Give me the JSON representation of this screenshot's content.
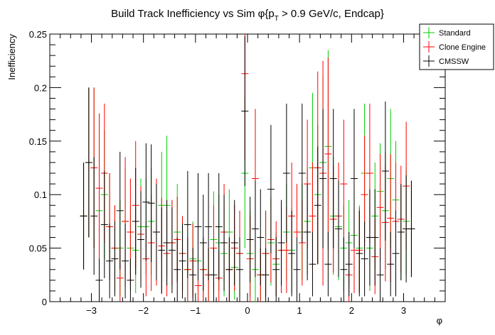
{
  "chart_data": {
    "type": "scatter",
    "title": "Build Track Inefficiency vs Sim φ{p_T > 0.9 GeV/c, Endcap}",
    "title_parts": {
      "pre": "Build Track Inefficiency vs Sim ",
      "phi": "φ",
      "brace": "{p",
      "sub": "T",
      "post": " > 0.9 GeV/c, Endcap}"
    },
    "xlabel": "φ",
    "ylabel": "Inefficiency",
    "xlim": [
      -3.8,
      3.8
    ],
    "ylim": [
      0,
      0.25
    ],
    "xticks": [
      -3,
      -2,
      -1,
      0,
      1,
      2,
      3
    ],
    "xtick_labels": [
      "−3",
      "−2",
      "−1",
      "0",
      "1",
      "2",
      "3"
    ],
    "yticks": [
      0,
      0.05,
      0.1,
      0.15,
      0.2,
      0.25
    ],
    "ytick_labels": [
      "0",
      "0.05",
      "0.1",
      "0.15",
      "0.2",
      "0.25"
    ],
    "legend_position": "top-right",
    "x": [
      -3.15,
      -3.05,
      -2.95,
      -2.85,
      -2.75,
      -2.65,
      -2.55,
      -2.45,
      -2.35,
      -2.25,
      -2.15,
      -2.05,
      -1.95,
      -1.85,
      -1.75,
      -1.65,
      -1.55,
      -1.45,
      -1.35,
      -1.25,
      -1.15,
      -1.05,
      -0.95,
      -0.85,
      -0.75,
      -0.65,
      -0.55,
      -0.45,
      -0.35,
      -0.25,
      -0.15,
      -0.05,
      0.05,
      0.15,
      0.25,
      0.35,
      0.45,
      0.55,
      0.65,
      0.75,
      0.85,
      0.95,
      1.05,
      1.15,
      1.25,
      1.35,
      1.45,
      1.55,
      1.65,
      1.75,
      1.85,
      1.95,
      2.05,
      2.15,
      2.25,
      2.35,
      2.45,
      2.55,
      2.65,
      2.75,
      2.85,
      2.95,
      3.05,
      3.15
    ],
    "series": [
      {
        "name": "Standard",
        "color": "#00cc00",
        "linewidth": 1,
        "values": [
          0.08,
          0.13,
          0.125,
          0.085,
          0.1,
          0.07,
          0.05,
          0.05,
          0.075,
          0.05,
          0.048,
          0.07,
          0.07,
          0.075,
          0.065,
          0.09,
          0.09,
          0.055,
          0.065,
          0.045,
          0.03,
          0.04,
          0.038,
          0.03,
          0.025,
          0.058,
          0.055,
          0.045,
          0.065,
          0.032,
          0.045,
          0.12,
          0.045,
          0.03,
          0.025,
          0.045,
          0.055,
          0.035,
          0.048,
          0.065,
          0.048,
          0.065,
          0.065,
          0.075,
          0.125,
          0.1,
          0.13,
          0.145,
          0.08,
          0.07,
          0.05,
          0.055,
          0.062,
          0.05,
          0.12,
          0.05,
          0.08,
          0.103,
          0.085,
          0.115,
          0.095,
          0.065,
          0.075,
          0.068
        ],
        "err": [
          0.05,
          0.07,
          0.075,
          0.065,
          0.06,
          0.05,
          0.04,
          0.045,
          0.05,
          0.04,
          0.04,
          0.045,
          0.045,
          0.05,
          0.04,
          0.05,
          0.065,
          0.04,
          0.045,
          0.035,
          0.03,
          0.035,
          0.03,
          0.03,
          0.025,
          0.045,
          0.045,
          0.04,
          0.04,
          0.03,
          0.04,
          0.07,
          0.04,
          0.03,
          0.025,
          0.04,
          0.04,
          0.03,
          0.04,
          0.045,
          0.04,
          0.045,
          0.045,
          0.05,
          0.07,
          0.065,
          0.08,
          0.09,
          0.055,
          0.05,
          0.04,
          0.04,
          0.045,
          0.04,
          0.065,
          0.04,
          0.05,
          0.045,
          0.055,
          0.065,
          0.055,
          0.045,
          0.05,
          0.045
        ]
      },
      {
        "name": "Clone Engine",
        "color": "#ff0000",
        "linewidth": 1,
        "values": [
          0.08,
          0.13,
          0.125,
          0.106,
          0.12,
          0.07,
          0.05,
          0.022,
          0.075,
          0.065,
          0.09,
          0.063,
          0.04,
          0.055,
          0.065,
          0.052,
          0.045,
          0.055,
          0.058,
          0.045,
          0.03,
          0.038,
          0.015,
          0.03,
          0.025,
          0.05,
          0.022,
          0.065,
          0.03,
          0.05,
          0.045,
          0.213,
          0.04,
          0.115,
          0.025,
          0.045,
          0.058,
          0.04,
          0.048,
          0.048,
          0.08,
          0.065,
          0.055,
          0.11,
          0.08,
          0.125,
          0.12,
          0.138,
          0.077,
          0.08,
          0.11,
          0.025,
          0.048,
          0.048,
          0.1,
          0.12,
          0.042,
          0.088,
          0.074,
          0.078,
          0.075,
          0.077,
          0.108,
          0.068
        ],
        "err": [
          0.05,
          0.07,
          0.075,
          0.07,
          0.065,
          0.05,
          0.04,
          0.03,
          0.06,
          0.05,
          0.06,
          0.045,
          0.035,
          0.045,
          0.05,
          0.045,
          0.04,
          0.04,
          0.04,
          0.035,
          0.03,
          0.035,
          0.02,
          0.03,
          0.025,
          0.04,
          0.025,
          0.045,
          0.03,
          0.04,
          0.04,
          0.08,
          0.04,
          0.065,
          0.025,
          0.04,
          0.04,
          0.035,
          0.04,
          0.04,
          0.05,
          0.045,
          0.04,
          0.06,
          0.05,
          0.09,
          0.105,
          0.09,
          0.05,
          0.05,
          0.06,
          0.025,
          0.04,
          0.04,
          0.055,
          0.065,
          0.035,
          0.05,
          0.055,
          0.06,
          0.055,
          0.05,
          0.06,
          0.045
        ]
      },
      {
        "name": "CMSSW",
        "color": "#000000",
        "linewidth": 1,
        "values": [
          0.08,
          0.13,
          0.08,
          0.02,
          0.072,
          0.038,
          0.04,
          0.085,
          0.038,
          0.02,
          0.075,
          0.058,
          0.093,
          0.092,
          0.065,
          0.048,
          0.055,
          0.048,
          0.03,
          0.038,
          0.072,
          0.025,
          0.07,
          0.055,
          0.07,
          0.025,
          0.07,
          0.055,
          0.03,
          0.055,
          0.03,
          0.178,
          0.058,
          0.068,
          0.06,
          0.025,
          0.105,
          0.03,
          0.055,
          0.12,
          0.045,
          0.03,
          0.12,
          0.065,
          0.035,
          0.09,
          0.115,
          0.035,
          0.115,
          0.068,
          0.03,
          0.035,
          0.115,
          0.045,
          0.04,
          0.06,
          0.06,
          0.025,
          0.122,
          0.035,
          0.045,
          0.065,
          0.068,
          0.068
        ],
        "err": [
          0.05,
          0.07,
          0.055,
          0.02,
          0.05,
          0.035,
          0.035,
          0.055,
          0.035,
          0.02,
          0.05,
          0.045,
          0.055,
          0.055,
          0.045,
          0.04,
          0.04,
          0.04,
          0.03,
          0.035,
          0.05,
          0.025,
          0.05,
          0.045,
          0.05,
          0.025,
          0.05,
          0.045,
          0.03,
          0.04,
          0.03,
          0.07,
          0.04,
          0.045,
          0.045,
          0.025,
          0.06,
          0.03,
          0.04,
          0.065,
          0.04,
          0.03,
          0.065,
          0.045,
          0.03,
          0.055,
          0.065,
          0.03,
          0.065,
          0.045,
          0.03,
          0.03,
          0.065,
          0.04,
          0.035,
          0.045,
          0.045,
          0.025,
          0.065,
          0.03,
          0.04,
          0.045,
          0.05,
          0.045
        ]
      }
    ]
  }
}
